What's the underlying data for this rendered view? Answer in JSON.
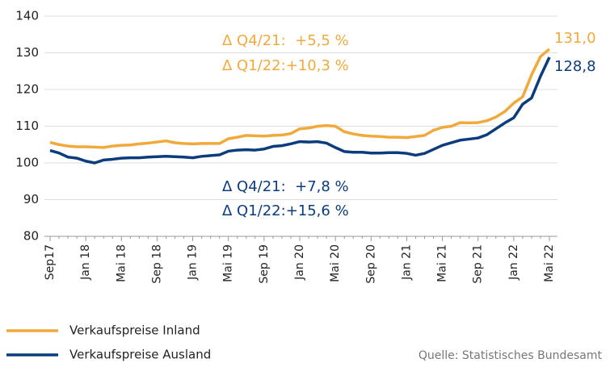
{
  "chart_data": {
    "type": "line",
    "categories": [
      "Sep17",
      null,
      null,
      null,
      "Jan 18",
      null,
      null,
      null,
      "Mai 18",
      null,
      null,
      null,
      "Sep 18",
      null,
      null,
      null,
      "Jan 19",
      null,
      null,
      null,
      "Mai 19",
      null,
      null,
      null,
      "Sep 19",
      null,
      null,
      null,
      "Jan 20",
      null,
      null,
      null,
      "Mai 20",
      null,
      null,
      null,
      "Sep 20",
      null,
      null,
      null,
      "Jan 21",
      null,
      null,
      null,
      "Mai 21",
      null,
      null,
      null,
      "Sep 21",
      null,
      null,
      null,
      "Jan 22",
      null,
      null,
      null,
      "Mai 22"
    ],
    "series": [
      {
        "name": "Verkaufspreise Inland",
        "color": "#f2a93b",
        "values": [
          105.6,
          105.0,
          104.6,
          104.4,
          104.4,
          104.3,
          104.2,
          104.6,
          104.8,
          104.9,
          105.2,
          105.4,
          105.7,
          106.0,
          105.5,
          105.3,
          105.2,
          105.3,
          105.3,
          105.3,
          106.6,
          107.0,
          107.5,
          107.4,
          107.3,
          107.5,
          107.6,
          108.0,
          109.3,
          109.5,
          110.0,
          110.2,
          110.0,
          108.5,
          107.9,
          107.5,
          107.3,
          107.2,
          107.0,
          107.0,
          106.9,
          107.2,
          107.5,
          108.9,
          109.7,
          110.0,
          111.0,
          110.9,
          111.0,
          111.5,
          112.5,
          114.0,
          116.3,
          118.0,
          124.0,
          129.0,
          131.0
        ],
        "value_labels": [
          null,
          null,
          null,
          null,
          null,
          null,
          null,
          null,
          null,
          null,
          null,
          null,
          null,
          null,
          null,
          null,
          null,
          null,
          null,
          null,
          null,
          null,
          null,
          null,
          null,
          null,
          null,
          null,
          null,
          null,
          null,
          null,
          null,
          null,
          null,
          null,
          null,
          null,
          null,
          null,
          null,
          null,
          null,
          null,
          null,
          null,
          null,
          null,
          null,
          null,
          null,
          null,
          null,
          null,
          null,
          null,
          "131,0"
        ]
      },
      {
        "name": "Verkaufspreise Ausland",
        "color": "#0b3c7d",
        "values": [
          103.4,
          102.7,
          101.6,
          101.3,
          100.5,
          100.0,
          100.8,
          101.0,
          101.3,
          101.4,
          101.4,
          101.6,
          101.7,
          101.8,
          101.7,
          101.6,
          101.4,
          101.8,
          102.0,
          102.2,
          103.2,
          103.5,
          103.6,
          103.5,
          103.8,
          104.5,
          104.7,
          105.2,
          105.8,
          105.7,
          105.8,
          105.4,
          104.2,
          103.1,
          102.9,
          102.9,
          102.7,
          102.7,
          102.8,
          102.8,
          102.6,
          102.1,
          102.6,
          103.7,
          104.8,
          105.5,
          106.2,
          106.5,
          106.8,
          107.7,
          109.3,
          110.9,
          112.3,
          116.0,
          117.7,
          123.6,
          128.8
        ],
        "value_labels": [
          null,
          null,
          null,
          null,
          null,
          null,
          null,
          null,
          null,
          null,
          null,
          null,
          null,
          null,
          null,
          null,
          null,
          null,
          null,
          null,
          null,
          null,
          null,
          null,
          null,
          null,
          null,
          null,
          null,
          null,
          null,
          null,
          null,
          null,
          null,
          null,
          null,
          null,
          null,
          null,
          null,
          null,
          null,
          null,
          null,
          null,
          null,
          null,
          null,
          null,
          null,
          null,
          null,
          null,
          null,
          null,
          "128,8"
        ]
      }
    ],
    "annotations": [
      "Δ Q4/21:  +5,5 %",
      "Δ Q1/22:+10,3 %",
      "Δ Q4/21:  +7,8 %",
      "Δ Q1/22:+15,6 %"
    ],
    "source": "Quelle: Statistisches Bundesamt",
    "ylim": [
      80,
      140
    ],
    "yticks": [
      80,
      90,
      100,
      110,
      120,
      130,
      140
    ],
    "grid": true
  }
}
